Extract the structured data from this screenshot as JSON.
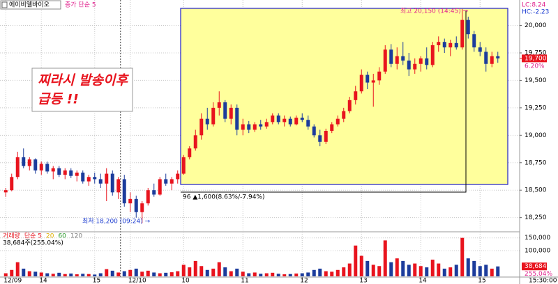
{
  "chart_data": {
    "type": "candlestick",
    "title": "에이비엘바이오",
    "indicator": "종가 단순 5",
    "up_color": "#e8141e",
    "down_color": "#1c3c9c",
    "ylim": [
      18140,
      20200
    ],
    "yticks": [
      {
        "value": 20000,
        "label": "20,000"
      },
      {
        "value": 19750,
        "label": "19,750"
      },
      {
        "value": 19500,
        "label": "19,500"
      },
      {
        "value": 19250,
        "label": "19,250"
      },
      {
        "value": 19000,
        "label": "19,000"
      },
      {
        "value": 18750,
        "label": "18,750"
      },
      {
        "value": 18500,
        "label": "18,500"
      },
      {
        "value": 18250,
        "label": "18,250"
      }
    ],
    "xticks": [
      {
        "value": 0,
        "label": "12/09"
      },
      {
        "value": 6,
        "label": "14"
      },
      {
        "value": 15,
        "label": "15"
      },
      {
        "value": 21,
        "label": "12/10"
      },
      {
        "value": 30,
        "label": "10"
      },
      {
        "value": 40,
        "label": "11"
      },
      {
        "value": 50,
        "label": "12"
      },
      {
        "value": 60,
        "label": "13"
      },
      {
        "value": 70,
        "label": "14"
      },
      {
        "value": 80,
        "label": "15"
      }
    ],
    "x_end_label": "15:30:00",
    "grid": true,
    "open": [
      18480,
      18500,
      18620,
      18800,
      18720,
      18780,
      18680,
      18740,
      18670,
      18700,
      18640,
      18680,
      18630,
      18660,
      18580,
      18620,
      18600,
      18560,
      18650,
      18480,
      18600,
      18380,
      18420,
      18300,
      18380,
      18500,
      18460,
      18600,
      18560,
      18600,
      18650,
      18800,
      18880,
      19000,
      19150,
      19100,
      19250,
      19300,
      19150,
      19250,
      19050,
      19100,
      19050,
      19100,
      19080,
      19120,
      19180,
      19120,
      19150,
      19100,
      19160,
      19140,
      19080,
      19000,
      18940,
      19040,
      19100,
      19150,
      19220,
      19320,
      19400,
      19550,
      19480,
      19500,
      19580,
      19780,
      19650,
      19720,
      19680,
      19600,
      19650,
      19700,
      19640,
      19820,
      19850,
      19800,
      19840,
      19800,
      20050,
      19920,
      19800,
      19760,
      19650,
      19720
    ],
    "high": [
      18520,
      18650,
      18850,
      18880,
      18800,
      18790,
      18760,
      18760,
      18720,
      18720,
      18700,
      18700,
      18680,
      18680,
      18640,
      18660,
      18650,
      18700,
      18680,
      18620,
      18640,
      18480,
      18450,
      18400,
      18520,
      18560,
      18620,
      18650,
      18620,
      18680,
      18820,
      18900,
      19050,
      19200,
      19250,
      19300,
      19400,
      19320,
      19280,
      19280,
      19150,
      19130,
      19120,
      19140,
      19150,
      19200,
      19200,
      19180,
      19170,
      19180,
      19200,
      19180,
      19100,
      19050,
      19060,
      19120,
      19180,
      19250,
      19350,
      19450,
      19600,
      19580,
      19560,
      19620,
      19820,
      19830,
      19800,
      19850,
      19750,
      19700,
      19720,
      19800,
      19850,
      19900,
      19880,
      19870,
      19900,
      20150,
      20080,
      19950,
      19850,
      19800,
      19760,
      19760
    ],
    "low": [
      18440,
      18490,
      18600,
      18700,
      18680,
      18650,
      18640,
      18650,
      18600,
      18620,
      18600,
      18610,
      18580,
      18560,
      18540,
      18560,
      18520,
      18400,
      18450,
      18420,
      18350,
      18300,
      18250,
      18200,
      18360,
      18440,
      18450,
      18540,
      18500,
      18560,
      18640,
      18780,
      18860,
      18960,
      19050,
      19080,
      19180,
      19120,
      19100,
      19000,
      19000,
      19020,
      19030,
      19050,
      19060,
      19100,
      19100,
      19080,
      19080,
      19090,
      19120,
      19050,
      18980,
      18900,
      18920,
      19020,
      19080,
      19120,
      19200,
      19280,
      19380,
      19420,
      19260,
      19460,
      19560,
      19620,
      19600,
      19640,
      19540,
      19560,
      19580,
      19600,
      19620,
      19760,
      19750,
      19720,
      19780,
      19780,
      19880,
      19760,
      19720,
      19580,
      19620,
      19660
    ],
    "close": [
      18500,
      18620,
      18800,
      18720,
      18780,
      18680,
      18740,
      18670,
      18700,
      18640,
      18680,
      18630,
      18660,
      18580,
      18620,
      18600,
      18560,
      18650,
      18480,
      18600,
      18380,
      18420,
      18300,
      18380,
      18500,
      18460,
      18600,
      18560,
      18600,
      18650,
      18800,
      18880,
      19000,
      19150,
      19100,
      19250,
      19300,
      19150,
      19250,
      19050,
      19100,
      19050,
      19100,
      19080,
      19120,
      19180,
      19120,
      19150,
      19100,
      19160,
      19140,
      19080,
      19000,
      18940,
      19040,
      19100,
      19150,
      19220,
      19320,
      19400,
      19550,
      19480,
      19500,
      19580,
      19780,
      19650,
      19720,
      19680,
      19600,
      19650,
      19700,
      19640,
      19820,
      19850,
      19800,
      19840,
      19800,
      20050,
      19920,
      19800,
      19760,
      19650,
      19720,
      19700
    ],
    "current_price": {
      "value": 19700,
      "label": "19,700"
    },
    "current_change": "6.20%",
    "lc_label": "LC:8.24",
    "hc_label": "HC:-2.23",
    "high_annotation": "최고 20,150 (14:45) →",
    "low_annotation": "최저 18,200 (09:24) →",
    "range_annotation": "96 ▲1,600(8.63%/-7.94%)",
    "note": [
      "찌라시 발송이후",
      "급등 !!"
    ],
    "volume": {
      "legend": [
        "거래량",
        "단순 5",
        "20",
        "60",
        "120"
      ],
      "legend_colors": [
        "#e8141e",
        "#e8141e",
        "#e0b000",
        "#2a9a2a",
        "#808080"
      ],
      "info": "38,684주(255.04%)",
      "ylim": [
        0,
        160000
      ],
      "yticks": [
        {
          "value": 150000,
          "label": "150,000"
        },
        {
          "value": 100000,
          "label": "100,000"
        }
      ],
      "last": {
        "value": 38684,
        "label": "38,684"
      },
      "last_ratio": "255.04%",
      "values": [
        12000,
        25000,
        55000,
        30000,
        20000,
        18000,
        15000,
        12000,
        10000,
        14000,
        9000,
        11000,
        8000,
        10000,
        9000,
        7000,
        12000,
        28000,
        22000,
        15000,
        20000,
        25000,
        30000,
        18000,
        22000,
        15000,
        12000,
        14000,
        16000,
        20000,
        45000,
        35000,
        60000,
        40000,
        25000,
        30000,
        55000,
        35000,
        20000,
        30000,
        18000,
        12000,
        15000,
        10000,
        12000,
        14000,
        10000,
        8000,
        9000,
        11000,
        12000,
        15000,
        25000,
        30000,
        20000,
        18000,
        25000,
        35000,
        50000,
        120000,
        80000,
        60000,
        45000,
        40000,
        140000,
        55000,
        70000,
        60000,
        45000,
        50000,
        40000,
        35000,
        65000,
        50000,
        30000,
        35000,
        45000,
        150000,
        70000,
        60000,
        40000,
        45000,
        30000,
        38684
      ]
    }
  }
}
